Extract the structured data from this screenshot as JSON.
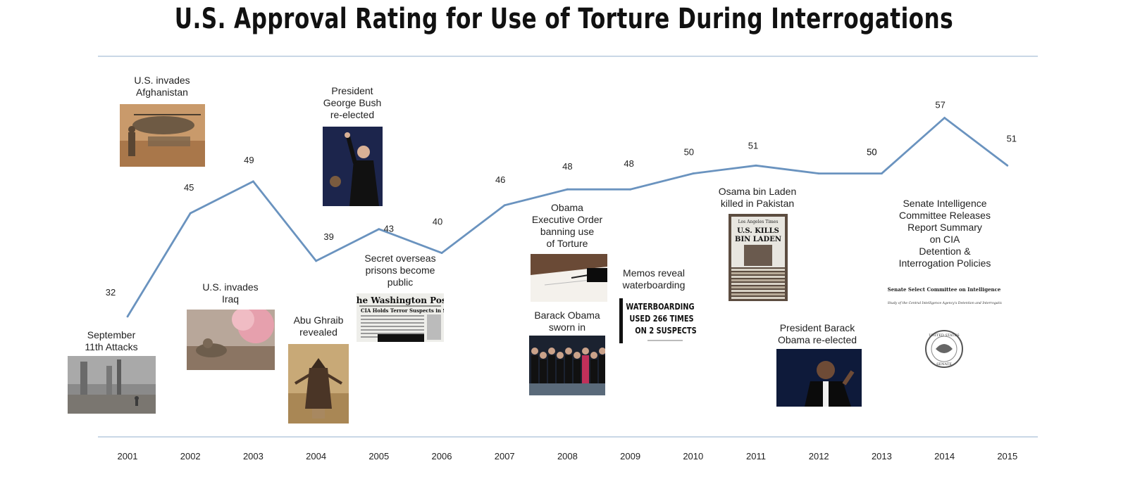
{
  "chart_data": {
    "type": "line",
    "title": "U.S. Approval Rating for Use of Torture During Interrogations",
    "x": [
      "2001",
      "2002",
      "2003",
      "2004",
      "2005",
      "2006",
      "2007",
      "2008",
      "2009",
      "2010",
      "2011",
      "2012",
      "2013",
      "2014",
      "2015"
    ],
    "series": [
      {
        "values": [
          32,
          45,
          49,
          39,
          43,
          40,
          46,
          48,
          48,
          50,
          51,
          50,
          50,
          57,
          51
        ]
      }
    ],
    "ylim": [
      25,
      60
    ],
    "grid": false,
    "line_color": "#6a93bf",
    "axis_color": "#a9bfd6",
    "annotations": [
      {
        "id": "sept11",
        "text": "September\n11th Attacks",
        "image": "ruins-photo"
      },
      {
        "id": "afghanistan",
        "text": "U.S. invades\nAfghanistan",
        "image": "helicopter-photo"
      },
      {
        "id": "iraq",
        "text": "U.S. invades\nIraq",
        "image": "battlefield-photo"
      },
      {
        "id": "abu_ghraib",
        "text": "Abu Ghraib\nrevealed",
        "image": "hooded-prisoner-photo"
      },
      {
        "id": "bush",
        "text": "President\nGeorge Bush\nre-elected",
        "image": "bush-photo"
      },
      {
        "id": "prisons",
        "text": "Secret overseas\nprisons become\npublic",
        "image": "newspaper-clipping"
      },
      {
        "id": "executive_order",
        "text": "Obama\nExecutive Order\nbanning use\nof Torture",
        "image": "signing-photo"
      },
      {
        "id": "sworn_in",
        "text": "Barack Obama\nsworn in",
        "image": "inauguration-photo"
      },
      {
        "id": "memos",
        "text": "Memos reveal\nwaterboarding",
        "image": "headline-clipping"
      },
      {
        "id": "bin_laden",
        "text": "Osama bin Laden\nkilled in Pakistan",
        "image": "newspaper-stack-photo"
      },
      {
        "id": "obama_reelected",
        "text": "President Barack\nObama re-elected",
        "image": "obama-photo"
      },
      {
        "id": "senate",
        "text": "Senate Intelligence\nCommittee Releases\nReport Summary\non CIA\nDetention &\nInterrogation Policies",
        "image": "senate-report-cover"
      }
    ],
    "images_text": {
      "wapo_masthead": "The Washington Post",
      "wapo_headline": "CIA Holds Terror Suspects in Secret Prisons",
      "waterboarding_line1": "WATERBOARDING",
      "waterboarding_line2": "USED 266 TIMES",
      "waterboarding_line3": "ON 2 SUSPECTS",
      "bin_laden_masthead": "Los Angeles Times",
      "bin_laden_headline1": "U.S. KILLS",
      "bin_laden_headline2": "BIN LADEN",
      "senate_heading": "Senate Select Committee on Intelligence",
      "senate_subtitle": "Committee Study of the Central Intelligence Agency's Detention and Interrogation Program",
      "seal_top": "UNITED STATES",
      "seal_bottom": "SENATE"
    }
  }
}
